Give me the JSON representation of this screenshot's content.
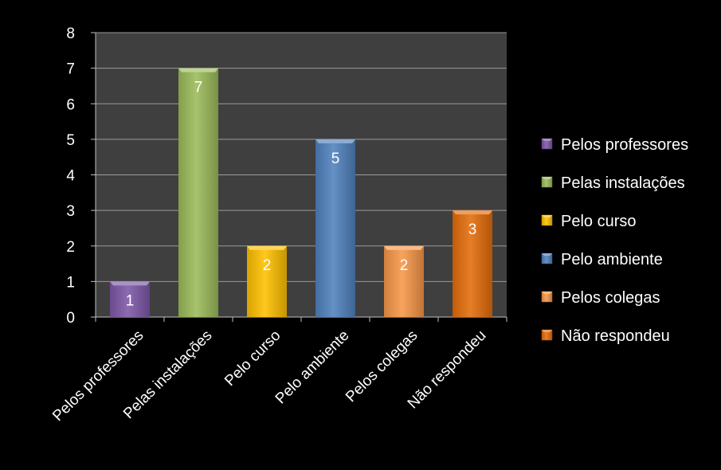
{
  "chart_data": {
    "type": "bar",
    "title": "",
    "xlabel": "",
    "ylabel": "",
    "categories": [
      "Pelos professores",
      "Pelas instalações",
      "Pelo curso",
      "Pelo ambiente",
      "Pelos colegas",
      "Não respondeu"
    ],
    "values": [
      1,
      7,
      2,
      5,
      2,
      3
    ],
    "colors": [
      "#7E57A8",
      "#9BBB59",
      "#FFC000",
      "#4F81BD",
      "#F79646",
      "#E46C0A"
    ],
    "ylim": [
      0,
      8
    ],
    "yticks": [
      "0",
      "1",
      "2",
      "3",
      "4",
      "5",
      "6",
      "7",
      "8"
    ],
    "data_labels": [
      "1",
      "7",
      "2",
      "5",
      "2",
      "3"
    ],
    "grid": true,
    "legend_position": "right",
    "legend": [
      "Pelos professores",
      "Pelas instalações",
      "Pelo curso",
      "Pelo ambiente",
      "Pelos colegas",
      "Não respondeu"
    ],
    "plot_background": "#3F3F3F",
    "page_background": "#000000"
  }
}
